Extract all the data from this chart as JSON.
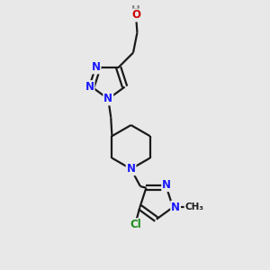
{
  "background_color": "#e8e8e8",
  "bond_color": "#1a1a1a",
  "bond_width": 1.6,
  "atom_colors": {
    "N": "#1a1aff",
    "O": "#cc0000",
    "Cl": "#1a8c1a",
    "C": "#1a1a1a",
    "H": "#808080"
  },
  "font_size_atom": 8.5
}
